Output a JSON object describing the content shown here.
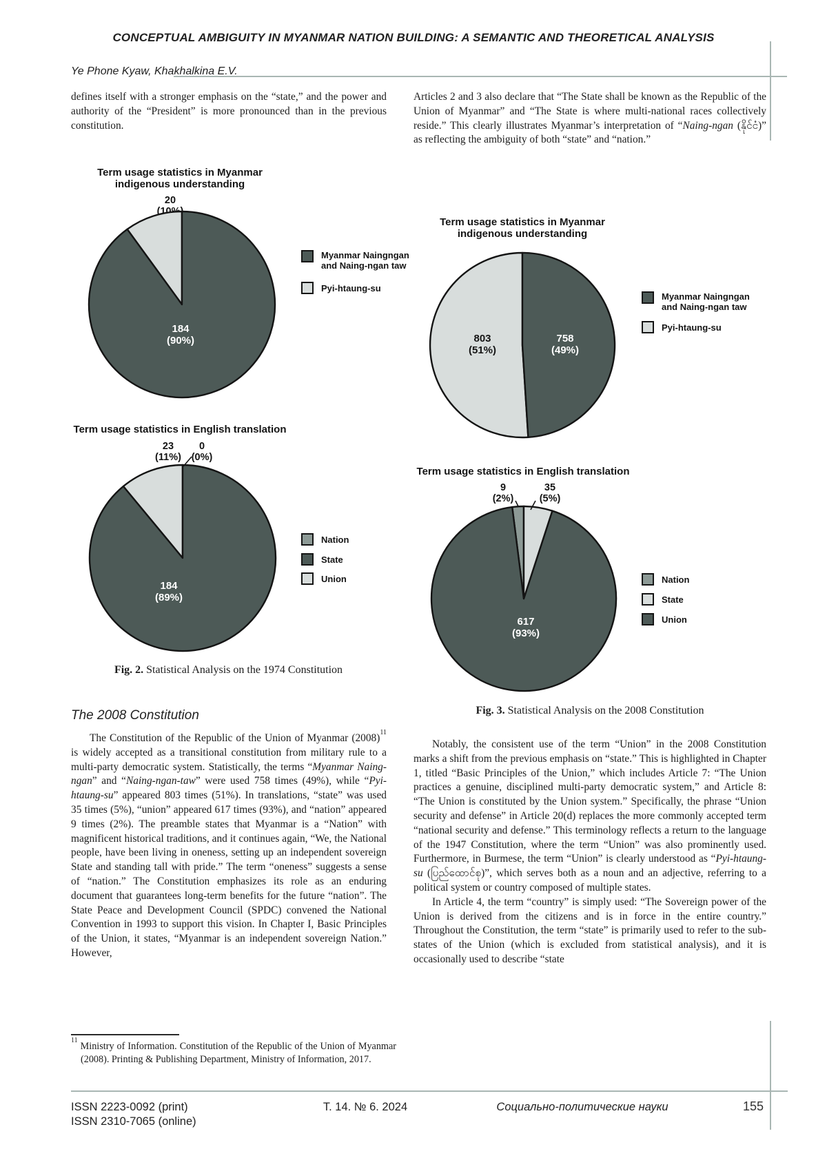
{
  "palette": {
    "dark": "#4d5a57",
    "light": "#d8dddc",
    "medium": "#8d9a96",
    "rule_gray": "#a9b6b3",
    "text": "#1d1d1d",
    "label_white": "#ffffff"
  },
  "header": {
    "title": "CONCEPTUAL AMBIGUITY IN MYANMAR NATION BUILDING: A SEMANTIC AND THEORETICAL ANALYSIS",
    "authors": "Ye Phone Kyaw, Khakhalkina E.V."
  },
  "left_column": {
    "para1": "defines itself with a stronger emphasis on the “state,” and the power and authority of the “President” is more pronounced than in the previous constitution.",
    "section_heading": "The 2008 Constitution",
    "para2": [
      {
        "t": "The Constitution of the Republic of the Union of Myanmar (2008)"
      },
      {
        "t": "11",
        "sup": true
      },
      {
        "t": " is widely accepted as a transitional constitution from military rule to a multi-party democratic system. Statistically, the terms “"
      },
      {
        "t": "Myanmar Naing-ngan",
        "i": true
      },
      {
        "t": "” and “"
      },
      {
        "t": "Naing-ngan-taw",
        "i": true
      },
      {
        "t": "” were used 758 times (49%), while “"
      },
      {
        "t": "Pyi-htaung-su",
        "i": true
      },
      {
        "t": "” appeared 803 times (51%). In translations, “state” was used 35 times (5%), “union” appeared 617 times (93%), and “nation” appeared 9 times (2%). The preamble states that Myanmar is a “Nation” with magnificent historical traditions, and it continues again, “We, the National people, have been living in oneness, setting up an independent sovereign State and standing tall with pride.” The term “oneness” suggests a sense of “nation.” The Constitution emphasizes its role as an enduring document that guarantees long-term benefits for the future “nation”. The State Peace and Development Council (SPDC) convened the National Convention in 1993 to support this vision. In Chapter I, Basic Principles of the Union, it states, “Myanmar is an independent sovereign Nation.” However,"
      }
    ],
    "footnote": [
      {
        "t": "11",
        "sup": true
      },
      {
        "t": " Ministry of Information. Constitution of the Republic of the Union of Myanmar (2008). Printing & Publishing Department, Ministry of Information, 2017."
      }
    ]
  },
  "right_column": {
    "para1": [
      {
        "t": "Articles 2 and 3 also declare that “The State shall be known as the Republic of the Union of Myanmar” and “The State is where multi-national races collectively reside.” This clearly illustrates Myanmar’s interpretation of “"
      },
      {
        "t": "Naing-ngan",
        "i": true
      },
      {
        "t": " (နိုင်ငံ)” as reflecting the ambiguity of both “state” and “nation.”"
      }
    ],
    "para2": [
      {
        "t": "Notably, the consistent use of the term “Union” in the 2008 Constitution marks a shift from the previous emphasis on “state.” This is highlighted in Chapter 1, titled “Basic Principles of the Union,” which includes Article 7: “The Union practices a genuine, disciplined multi-party democratic system,” and Article 8: “The Union is constituted by the Union system.” Specifically, the phrase “Union security and defense” in Article 20(d) replaces the more commonly accepted term “national security and defense.” This terminology reflects a return to the language of the 1947 Constitution, where the term “Union” was also prominently used. Furthermore, in Burmese, the term “Union” is clearly understood as “"
      },
      {
        "t": "Pyi-htaung-su",
        "i": true
      },
      {
        "t": " (ပြည်ထောင်စု)”, which serves both as a noun and an adjective, referring to a political system or country composed of multiple states."
      }
    ],
    "para3": "In Article 4, the term “country” is simply used: “The Sovereign power of the Union is derived from the citizens and is in force in the entire country.” Throughout the Constitution, the term “state” is primarily used to refer to the sub-states of the Union (which is excluded from statistical analysis), and it is occasionally used to describe “state"
  },
  "figures": {
    "fig2_caption": [
      {
        "t": "Fig. 2.",
        "b": true
      },
      {
        "t": " Statistical Analysis on the 1974 Constitution"
      }
    ],
    "fig3_caption": [
      {
        "t": "Fig. 3.",
        "b": true
      },
      {
        "t": " Statistical Analysis on the 2008 Constitution"
      }
    ]
  },
  "chart_data": [
    {
      "type": "pie",
      "figure": "Fig. 2 — 1974 Constitution",
      "title": "Term usage statistics in Myanmar indigenous understanding",
      "slices": [
        {
          "name": "Myanmar Naingngan and Naing-ngan taw",
          "value": 184,
          "pct": 90,
          "pct_label": "(90%)",
          "color": "dark"
        },
        {
          "name": "Pyi-htaung-su",
          "value": 20,
          "pct": 10,
          "pct_label": "(10%)",
          "color": "light"
        }
      ],
      "legend": [
        {
          "label": "Myanmar Naingngan and Naing-ngan taw",
          "color": "dark"
        },
        {
          "label": "Pyi-htaung-su",
          "color": "light"
        }
      ],
      "legend_position": "right",
      "start_angle_deg": 0,
      "clockwise": true
    },
    {
      "type": "pie",
      "figure": "Fig. 2 — 1974 Constitution",
      "title": "Term usage statistics in English translation",
      "slices": [
        {
          "name": "State",
          "value": 184,
          "pct": 89,
          "pct_label": "(89%)",
          "color": "dark"
        },
        {
          "name": "Nation",
          "value": 23,
          "pct": 11,
          "pct_label": "(11%)",
          "color": "light"
        },
        {
          "name": "Union",
          "value": 0,
          "pct": 0,
          "pct_label": "(0%)",
          "color": "light"
        }
      ],
      "legend": [
        {
          "label": "Nation",
          "color": "medium"
        },
        {
          "label": "State",
          "color": "dark"
        },
        {
          "label": "Union",
          "color": "light"
        }
      ],
      "legend_position": "right",
      "start_angle_deg": 0,
      "clockwise": true
    },
    {
      "type": "pie",
      "figure": "Fig. 3 — 2008 Constitution",
      "title": "Term usage statistics in Myanmar indigenous understanding",
      "slices": [
        {
          "name": "Myanmar Naingngan and Naing-ngan taw",
          "value": 758,
          "pct": 49,
          "pct_label": "(49%)",
          "color": "dark"
        },
        {
          "name": "Pyi-htaung-su",
          "value": 803,
          "pct": 51,
          "pct_label": "(51%)",
          "color": "light"
        }
      ],
      "legend": [
        {
          "label": "Myanmar Naingngan and Naing-ngan taw",
          "color": "dark"
        },
        {
          "label": "Pyi-htaung-su",
          "color": "light"
        }
      ],
      "legend_position": "right",
      "start_angle_deg": 0,
      "clockwise": true
    },
    {
      "type": "pie",
      "figure": "Fig. 3 — 2008 Constitution",
      "title": "Term usage statistics in English translation",
      "slices": [
        {
          "name": "State",
          "value": 35,
          "pct": 5,
          "pct_label": "(5%)",
          "color": "light"
        },
        {
          "name": "Union",
          "value": 617,
          "pct": 93,
          "pct_label": "(93%)",
          "color": "dark"
        },
        {
          "name": "Nation",
          "value": 9,
          "pct": 2,
          "pct_label": "(2%)",
          "color": "medium"
        }
      ],
      "legend": [
        {
          "label": "Nation",
          "color": "medium"
        },
        {
          "label": "State",
          "color": "light"
        },
        {
          "label": "Union",
          "color": "dark"
        }
      ],
      "legend_position": "right",
      "start_angle_deg": 0,
      "clockwise": true
    }
  ],
  "footer": {
    "issn_print": "ISSN 2223-0092 (print)",
    "issn_online": "ISSN 2310-7065 (online)",
    "volume": "Т. 14. № 6. 2024",
    "journal": "Социально-политические науки",
    "page": "155"
  }
}
